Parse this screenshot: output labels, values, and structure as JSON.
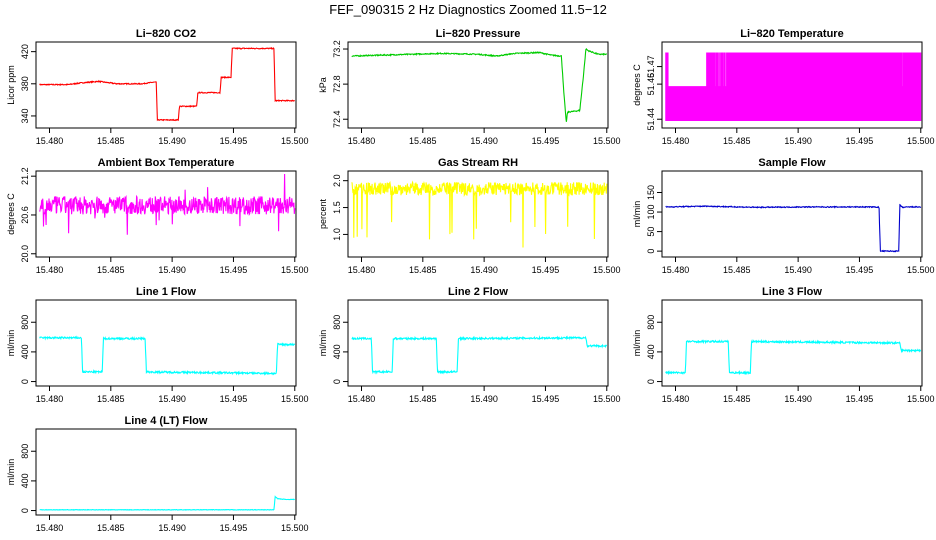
{
  "figure_title": "FEF_090315  2 Hz Diagnostics Zoomed 11.5−12",
  "chart_data": [
    {
      "type": "line",
      "title": "Li−820 CO2",
      "ylabel": "Licor ppm",
      "color": "#ff0000",
      "xlim": [
        15.4789,
        15.5001
      ],
      "ylim": [
        325,
        432
      ],
      "yticks": [
        "340",
        "380",
        "420"
      ],
      "ytick_values": [
        340,
        380,
        420
      ],
      "xticks": [
        "15.480",
        "15.485",
        "15.490",
        "15.495",
        "15.500"
      ],
      "xtick_values": [
        15.48,
        15.485,
        15.49,
        15.495,
        15.5
      ],
      "noise": 0.6,
      "series": [
        {
          "x": [
            15.4792,
            15.4815,
            15.4825,
            15.484,
            15.4855,
            15.4875,
            15.4885,
            15.4887,
            15.4888,
            15.4905,
            15.4906,
            15.492,
            15.4921,
            15.4939,
            15.494,
            15.4948,
            15.4949,
            15.4983,
            15.4984,
            15.5
          ],
          "y": [
            379,
            379,
            381,
            383,
            380,
            380,
            382,
            382,
            335,
            335,
            352,
            352,
            369,
            369,
            388,
            388,
            424,
            424,
            359,
            359
          ]
        }
      ]
    },
    {
      "type": "line",
      "title": "Li−820 Pressure",
      "ylabel": "kPa",
      "color": "#00cc00",
      "xlim": [
        15.4789,
        15.5001
      ],
      "ylim": [
        72.3,
        73.28
      ],
      "yticks": [
        "72.4",
        "72.8",
        "73.2"
      ],
      "ytick_values": [
        72.4,
        72.8,
        73.2
      ],
      "xticks": [
        "15.480",
        "15.485",
        "15.490",
        "15.495",
        "15.500"
      ],
      "xtick_values": [
        15.48,
        15.485,
        15.49,
        15.495,
        15.5
      ],
      "noise": 0.006,
      "series": [
        {
          "x": [
            15.4792,
            15.4815,
            15.484,
            15.4865,
            15.4895,
            15.491,
            15.4925,
            15.4945,
            15.4955,
            15.4963,
            15.4965,
            15.4967,
            15.4968,
            15.4978,
            15.4981,
            15.4983,
            15.4985,
            15.4993,
            15.5
          ],
          "y": [
            73.12,
            73.13,
            73.14,
            73.15,
            73.14,
            73.12,
            73.15,
            73.16,
            73.13,
            73.12,
            72.7,
            72.36,
            72.48,
            72.5,
            72.9,
            73.2,
            73.18,
            73.14,
            73.14
          ]
        }
      ]
    },
    {
      "type": "line",
      "title": "Li−820 Temperature",
      "ylabel": "degrees C",
      "color": "#ff00ff",
      "xlim": [
        15.4789,
        15.5001
      ],
      "ylim": [
        51.435,
        51.484
      ],
      "yticks": [
        "51.44",
        "51.46",
        "51.47"
      ],
      "ytick_values": [
        51.44,
        51.46,
        51.47
      ],
      "xticks": [
        "15.480",
        "15.485",
        "15.490",
        "15.495",
        "15.500"
      ],
      "xtick_values": [
        15.48,
        15.485,
        15.49,
        15.495,
        15.5
      ],
      "levels": [
        51.439,
        51.458,
        51.478
      ],
      "series": [
        {
          "x": [
            15.4792,
            15.4825,
            15.4845,
            15.4875,
            15.492,
            15.4943,
            15.495,
            15.5
          ],
          "y": [
            51.439,
            51.458,
            51.478,
            51.478,
            51.478,
            51.478,
            51.478,
            51.478
          ]
        }
      ]
    },
    {
      "type": "line",
      "title": "Ambient Box Temperature",
      "ylabel": "degrees C",
      "color": "#ff00ff",
      "xlim": [
        15.4789,
        15.5001
      ],
      "ylim": [
        19.95,
        21.28
      ],
      "yticks": [
        "20.0",
        "20.6",
        "21.2"
      ],
      "ytick_values": [
        20.0,
        20.6,
        21.2
      ],
      "xticks": [
        "15.480",
        "15.485",
        "15.490",
        "15.495",
        "15.500"
      ],
      "xtick_values": [
        15.48,
        15.485,
        15.49,
        15.495,
        15.5
      ],
      "noise": 0.14,
      "series": [
        {
          "x": [
            15.4792,
            15.49,
            15.5
          ],
          "y": [
            20.75,
            20.75,
            20.75
          ]
        }
      ]
    },
    {
      "type": "line",
      "title": "Gas Stream RH",
      "ylabel": "percent",
      "color": "#ffff00",
      "xlim": [
        15.4789,
        15.5001
      ],
      "ylim": [
        0.58,
        2.18
      ],
      "yticks": [
        "1.0",
        "1.5",
        "2.0"
      ],
      "ytick_values": [
        1.0,
        1.5,
        2.0
      ],
      "xticks": [
        "15.480",
        "15.485",
        "15.490",
        "15.495",
        "15.500"
      ],
      "xtick_values": [
        15.48,
        15.485,
        15.49,
        15.495,
        15.5
      ],
      "noise": 0.12,
      "series": [
        {
          "x": [
            15.4792,
            15.49,
            15.5
          ],
          "y": [
            1.85,
            1.85,
            1.85
          ]
        }
      ]
    },
    {
      "type": "line",
      "title": "Sample Flow",
      "ylabel": "ml/min",
      "color": "#0000cc",
      "xlim": [
        15.4789,
        15.5001
      ],
      "ylim": [
        -15,
        205
      ],
      "yticks": [
        "0",
        "50",
        "100",
        "150"
      ],
      "ytick_values": [
        0,
        50,
        100,
        150
      ],
      "xticks": [
        "15.480",
        "15.485",
        "15.490",
        "15.495",
        "15.500"
      ],
      "xtick_values": [
        15.48,
        15.485,
        15.49,
        15.495,
        15.5
      ],
      "noise": 1.2,
      "series": [
        {
          "x": [
            15.4792,
            15.4825,
            15.4865,
            15.4905,
            15.4963,
            15.4966,
            15.4967,
            15.4982,
            15.4983,
            15.4985,
            15.4991,
            15.5
          ],
          "y": [
            113,
            115,
            112,
            113,
            113,
            112,
            0,
            0,
            118,
            112,
            113,
            113
          ]
        }
      ]
    },
    {
      "type": "line",
      "title": "Line 1 Flow",
      "ylabel": "ml/min",
      "color": "#00ffff",
      "xlim": [
        15.4789,
        15.5001
      ],
      "ylim": [
        -60,
        1100
      ],
      "yticks": [
        "0",
        "400",
        "800"
      ],
      "ytick_values": [
        0,
        400,
        800
      ],
      "xticks": [
        "15.480",
        "15.485",
        "15.490",
        "15.495",
        "15.500"
      ],
      "xtick_values": [
        15.48,
        15.485,
        15.49,
        15.495,
        15.5
      ],
      "noise": 12,
      "series": [
        {
          "x": [
            15.4792,
            15.4826,
            15.4827,
            15.4843,
            15.4844,
            15.4878,
            15.4879,
            15.4985,
            15.4986,
            15.5
          ],
          "y": [
            590,
            590,
            130,
            130,
            580,
            580,
            130,
            110,
            500,
            500
          ]
        }
      ]
    },
    {
      "type": "line",
      "title": "Line 2 Flow",
      "ylabel": "ml/min",
      "color": "#00ffff",
      "xlim": [
        15.4789,
        15.5001
      ],
      "ylim": [
        -60,
        1100
      ],
      "yticks": [
        "0",
        "400",
        "800"
      ],
      "ytick_values": [
        0,
        400,
        800
      ],
      "xticks": [
        "15.480",
        "15.485",
        "15.490",
        "15.495",
        "15.500"
      ],
      "xtick_values": [
        15.48,
        15.485,
        15.49,
        15.495,
        15.5
      ],
      "noise": 12,
      "series": [
        {
          "x": [
            15.4792,
            15.4808,
            15.4809,
            15.4825,
            15.4826,
            15.4861,
            15.4862,
            15.4878,
            15.4879,
            15.4983,
            15.4984,
            15.5
          ],
          "y": [
            580,
            580,
            130,
            130,
            580,
            580,
            130,
            130,
            580,
            590,
            480,
            480
          ]
        }
      ]
    },
    {
      "type": "line",
      "title": "Line 3 Flow",
      "ylabel": "ml/min",
      "color": "#00ffff",
      "xlim": [
        15.4789,
        15.5001
      ],
      "ylim": [
        -60,
        1100
      ],
      "yticks": [
        "0",
        "400",
        "800"
      ],
      "ytick_values": [
        0,
        400,
        800
      ],
      "xticks": [
        "15.480",
        "15.485",
        "15.490",
        "15.495",
        "15.500"
      ],
      "xtick_values": [
        15.48,
        15.485,
        15.49,
        15.495,
        15.5
      ],
      "noise": 12,
      "series": [
        {
          "x": [
            15.4792,
            15.4808,
            15.4809,
            15.4843,
            15.4844,
            15.4861,
            15.4862,
            15.4983,
            15.4984,
            15.5
          ],
          "y": [
            120,
            120,
            540,
            540,
            120,
            120,
            540,
            520,
            420,
            420
          ]
        }
      ]
    },
    {
      "type": "line",
      "title": "Line 4 (LT) Flow",
      "ylabel": "ml/min",
      "color": "#00ffff",
      "xlim": [
        15.4789,
        15.5001
      ],
      "ylim": [
        -60,
        1100
      ],
      "yticks": [
        "0",
        "400",
        "800"
      ],
      "ytick_values": [
        0,
        400,
        800
      ],
      "xticks": [
        "15.480",
        "15.485",
        "15.490",
        "15.495",
        "15.500"
      ],
      "xtick_values": [
        15.48,
        15.485,
        15.49,
        15.495,
        15.5
      ],
      "noise": 3,
      "series": [
        {
          "x": [
            15.4792,
            15.4983,
            15.4984,
            15.4986,
            15.4992,
            15.5
          ],
          "y": [
            10,
            10,
            190,
            160,
            150,
            150
          ]
        }
      ]
    }
  ]
}
